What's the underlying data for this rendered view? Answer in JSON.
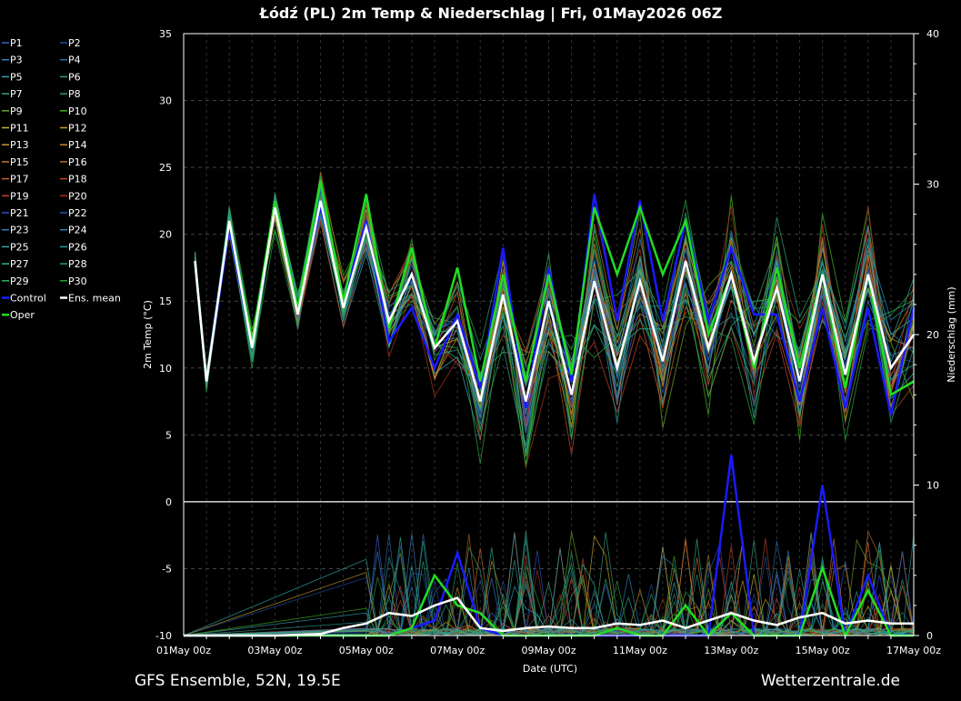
{
  "chart_data": {
    "type": "line",
    "title": "Łódź  (PL)  2m Temp & Niederschlag | Fri, 01May2026 06Z",
    "xlabel": "Date (UTC)",
    "ylabel": "2m Temp (°C)",
    "y2label": "Niederschlag (mm)",
    "ylim": [
      -10,
      35
    ],
    "y2lim": [
      0,
      40
    ],
    "xlim": [
      0,
      16
    ],
    "xlim_note": "days after 01May 00z",
    "yticks": [
      "35",
      "30",
      "25",
      "20",
      "15",
      "10",
      "5",
      "0",
      "-5",
      "-10"
    ],
    "y2ticks": [
      "40",
      "30",
      "20",
      "10",
      "0"
    ],
    "xticks": [
      "01May 00z",
      "03May 00z",
      "05May 00z",
      "07May 00z",
      "09May 00z",
      "11May 00z",
      "13May 00z",
      "15May 00z",
      "17May 00z"
    ],
    "footer_left": "GFS Ensemble, 52N, 19.5E",
    "footer_right": "Wetterzentrale.de",
    "legend": [
      {
        "name": "P1",
        "color": "#3a5fcd"
      },
      {
        "name": "P2",
        "color": "#1c4fa0"
      },
      {
        "name": "P3",
        "color": "#3b7fc4"
      },
      {
        "name": "P4",
        "color": "#2a6fa8"
      },
      {
        "name": "P5",
        "color": "#3aa3b8"
      },
      {
        "name": "P6",
        "color": "#2f9a8a"
      },
      {
        "name": "P7",
        "color": "#37a57a"
      },
      {
        "name": "P8",
        "color": "#2e9e5a"
      },
      {
        "name": "P9",
        "color": "#6aa52a"
      },
      {
        "name": "P10",
        "color": "#3cae1e"
      },
      {
        "name": "P11",
        "color": "#c8b42a"
      },
      {
        "name": "P12",
        "color": "#c8a020"
      },
      {
        "name": "P13",
        "color": "#c89a30"
      },
      {
        "name": "P14",
        "color": "#c88a20"
      },
      {
        "name": "P15",
        "color": "#c87830"
      },
      {
        "name": "P16",
        "color": "#b86a20"
      },
      {
        "name": "P17",
        "color": "#c86030"
      },
      {
        "name": "P18",
        "color": "#b84a28"
      },
      {
        "name": "P19",
        "color": "#c04030"
      },
      {
        "name": "P20",
        "color": "#a03020"
      },
      {
        "name": "P21",
        "color": "#3050c8"
      },
      {
        "name": "P22",
        "color": "#2850a8"
      },
      {
        "name": "P23",
        "color": "#3080b0"
      },
      {
        "name": "P24",
        "color": "#2a88b8"
      },
      {
        "name": "P25",
        "color": "#30a8a8"
      },
      {
        "name": "P26",
        "color": "#2a9898"
      },
      {
        "name": "P27",
        "color": "#30b090"
      },
      {
        "name": "P28",
        "color": "#28a070"
      },
      {
        "name": "P29",
        "color": "#30b060"
      },
      {
        "name": "P30",
        "color": "#28a040"
      },
      {
        "name": "Control",
        "color": "#1a1aff"
      },
      {
        "name": "Ens. mean",
        "color": "#ffffff"
      },
      {
        "name": "Oper",
        "color": "#22dd22"
      }
    ],
    "series": [
      {
        "name": "Ens. mean",
        "axis": "temp",
        "x": [
          0.25,
          0.5,
          1,
          1.5,
          2,
          2.5,
          3,
          3.5,
          4,
          4.5,
          5,
          5.5,
          6,
          6.5,
          7,
          7.5,
          8,
          8.5,
          9,
          9.5,
          10,
          10.5,
          11,
          11.5,
          12,
          12.5,
          13,
          13.5,
          14,
          14.5,
          15,
          15.5,
          16
        ],
        "values": [
          18,
          9,
          21,
          11.5,
          22,
          14,
          22.5,
          14.5,
          20.5,
          13.5,
          17,
          11.5,
          13.5,
          7.5,
          15.5,
          7.5,
          15,
          8,
          16.5,
          10,
          16.5,
          10.5,
          18,
          11.5,
          17,
          10.5,
          16,
          9,
          17,
          9.5,
          17,
          10,
          12.5
        ]
      },
      {
        "name": "Control",
        "axis": "temp",
        "x": [
          0.25,
          0.5,
          1,
          1.5,
          2,
          2.5,
          3,
          3.5,
          4,
          4.5,
          5,
          5.5,
          6,
          6.5,
          7,
          7.5,
          8,
          8.5,
          9,
          9.5,
          10,
          10.5,
          11,
          11.5,
          12,
          12.5,
          13,
          13.5,
          14,
          14.5,
          15,
          15.5,
          16
        ],
        "values": [
          18,
          9,
          20.5,
          11.5,
          22.5,
          14.5,
          22,
          15,
          21,
          12,
          14.5,
          10,
          14,
          8.5,
          19,
          7,
          17.5,
          9,
          23,
          13.5,
          22.5,
          13.5,
          21,
          13.5,
          19,
          14,
          14,
          7.5,
          14.5,
          7,
          14.5,
          6.5,
          14.5
        ]
      },
      {
        "name": "Oper",
        "axis": "temp",
        "x": [
          0.25,
          0.5,
          1,
          1.5,
          2,
          2.5,
          3,
          3.5,
          4,
          4.5,
          5,
          5.5,
          6,
          6.5,
          7,
          7.5,
          8,
          8.5,
          9,
          9.5,
          10,
          10.5,
          11,
          11.5,
          12,
          12.5,
          13,
          13.5,
          14,
          14.5,
          15,
          15.5,
          16
        ],
        "values": [
          18,
          9,
          21,
          12,
          22.5,
          14.5,
          24,
          15,
          23,
          13,
          19,
          11.5,
          17.5,
          9,
          17,
          9,
          17,
          9.5,
          22,
          17,
          22,
          17,
          21,
          12.5,
          17,
          10,
          17.5,
          10,
          17,
          8.5,
          17,
          8,
          9
        ]
      },
      {
        "name": "Ens. mean precip",
        "axis": "precip",
        "x": [
          0,
          2,
          3,
          3.5,
          4,
          4.5,
          5,
          5.5,
          6,
          6.5,
          7,
          7.5,
          8,
          8.5,
          9,
          9.5,
          10,
          10.5,
          11,
          11.5,
          12,
          12.5,
          13,
          13.5,
          14,
          14.5,
          15,
          15.5,
          16
        ],
        "values": [
          0,
          0,
          0.1,
          0.5,
          0.8,
          1.5,
          1.3,
          2,
          2.5,
          0.5,
          0.3,
          0.5,
          0.6,
          0.5,
          0.5,
          0.8,
          0.7,
          1,
          0.5,
          1,
          1.5,
          1,
          0.7,
          1.2,
          1.5,
          0.8,
          1,
          0.8,
          0.8
        ]
      },
      {
        "name": "Control precip",
        "axis": "precip",
        "x": [
          0,
          4,
          4.5,
          5,
          5.5,
          6,
          6.5,
          7,
          7.5,
          8,
          8.5,
          9,
          9.5,
          10,
          10.5,
          11,
          11.5,
          12,
          12.5,
          13,
          13.5,
          14,
          14.5,
          15,
          15.5,
          16
        ],
        "values": [
          0,
          0,
          0,
          0.5,
          1,
          5.5,
          0.5,
          0,
          0,
          0,
          0,
          0,
          0,
          0,
          0,
          0,
          0,
          12,
          0,
          0,
          0,
          10,
          0,
          4,
          0,
          0
        ]
      },
      {
        "name": "Oper precip",
        "axis": "precip",
        "x": [
          0,
          4,
          4.5,
          5,
          5.5,
          6,
          6.5,
          7,
          7.5,
          8,
          8.5,
          9,
          9.5,
          10,
          10.5,
          11,
          11.5,
          12,
          12.5,
          13,
          13.5,
          14,
          14.5,
          15,
          15.5,
          16
        ],
        "values": [
          0,
          0,
          0,
          0.5,
          4,
          2,
          1.5,
          0,
          0,
          0,
          0,
          0,
          0.5,
          0,
          0,
          2,
          0,
          1.5,
          0,
          0,
          0,
          4.5,
          0,
          3,
          0,
          0
        ]
      }
    ]
  }
}
